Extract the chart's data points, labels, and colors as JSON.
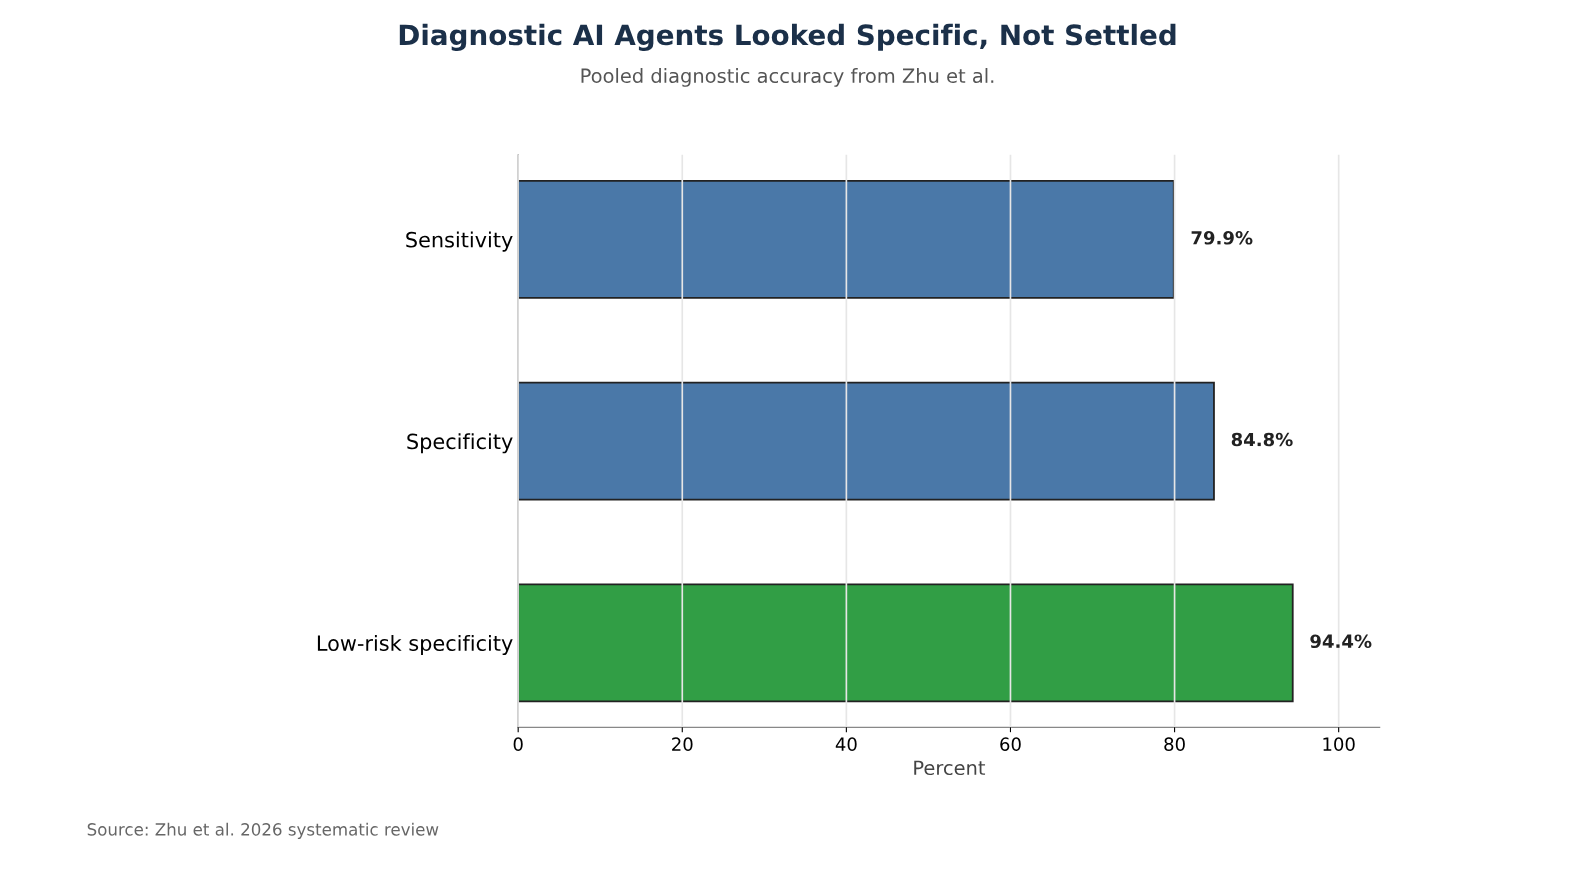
{
  "chart_data": {
    "type": "bar",
    "orientation": "horizontal",
    "title": "Diagnostic AI Agents Looked Specific, Not Settled",
    "subtitle": "Pooled diagnostic accuracy from Zhu et al.",
    "xlabel": "Percent",
    "categories": [
      "Sensitivity",
      "Specificity",
      "Low-risk specificity"
    ],
    "values": [
      79.9,
      84.8,
      94.4
    ],
    "colors": [
      "#4a78a8",
      "#4a78a8",
      "#319e45"
    ],
    "value_labels": [
      "79.9%",
      "84.8%",
      "94.4%"
    ],
    "xlim": [
      0,
      105
    ],
    "xticks": [
      0,
      20,
      40,
      60,
      80,
      100
    ],
    "grid": "x",
    "annotations": [
      "Source: Zhu et al. 2026 systematic review"
    ]
  }
}
